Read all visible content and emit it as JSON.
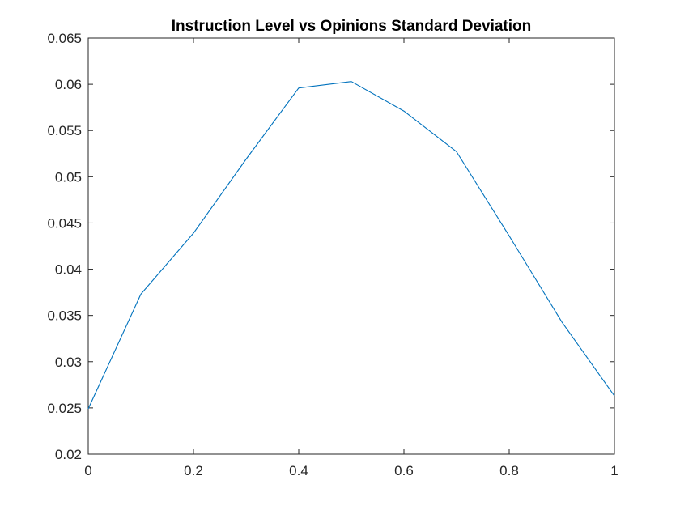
{
  "chart_data": {
    "type": "line",
    "title": "Instruction Level vs Opinions Standard Deviation",
    "xlabel": "",
    "ylabel": "",
    "xlim": [
      0,
      1
    ],
    "ylim": [
      0.02,
      0.065
    ],
    "xticks": [
      0,
      0.2,
      0.4,
      0.6,
      0.8,
      1
    ],
    "xtick_labels": [
      "0",
      "0.2",
      "0.4",
      "0.6",
      "0.8",
      "1"
    ],
    "yticks": [
      0.02,
      0.025,
      0.03,
      0.035,
      0.04,
      0.045,
      0.05,
      0.055,
      0.06,
      0.065
    ],
    "ytick_labels": [
      "0.02",
      "0.025",
      "0.03",
      "0.035",
      "0.04",
      "0.045",
      "0.05",
      "0.055",
      "0.06",
      "0.065"
    ],
    "grid": false,
    "legend": "none",
    "line_color": "#0072BD",
    "axis_color": "#262626",
    "series": [
      {
        "x": [
          0,
          0.1,
          0.2,
          0.3,
          0.4,
          0.5,
          0.6,
          0.7,
          0.8,
          0.9,
          1
        ],
        "y": [
          0.0249,
          0.0373,
          0.0439,
          0.0519,
          0.0596,
          0.0603,
          0.0571,
          0.0527,
          0.0436,
          0.0343,
          0.0263
        ]
      }
    ]
  }
}
